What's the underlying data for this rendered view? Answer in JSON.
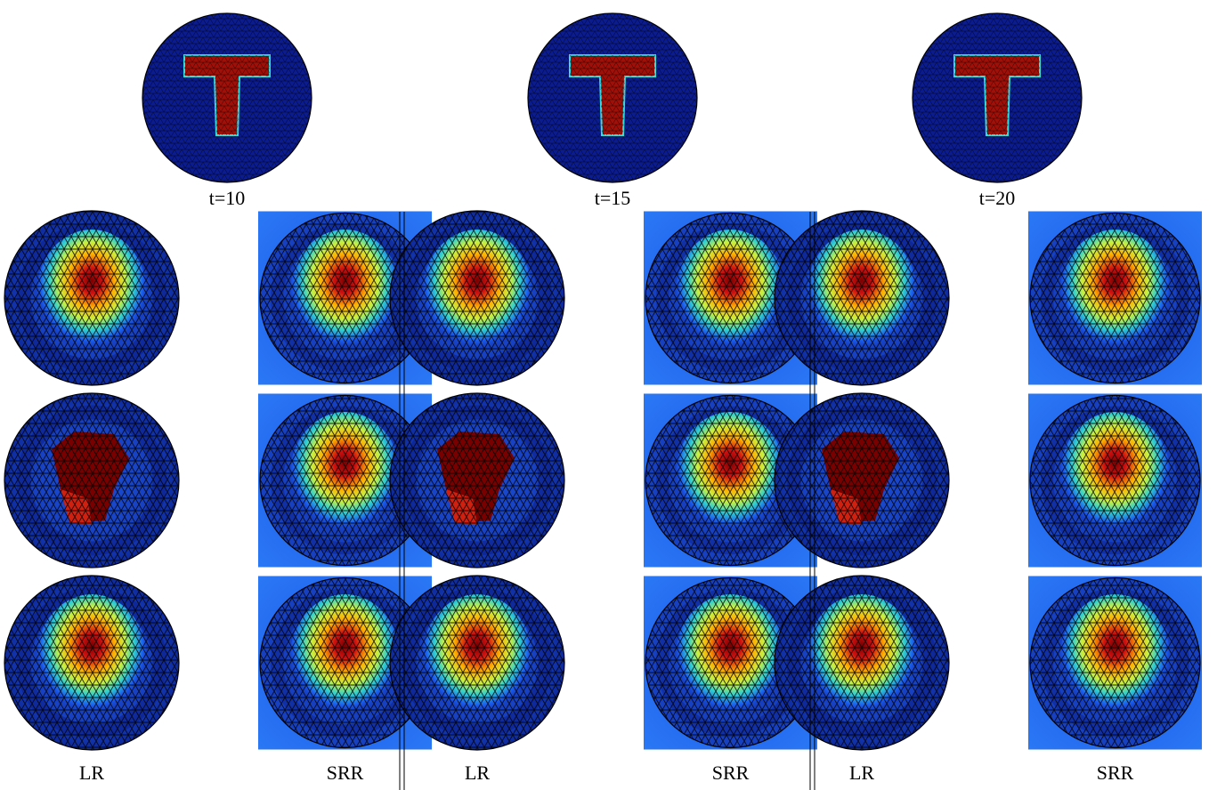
{
  "columns": [
    {
      "time_label": "t=10",
      "left_label": "LR",
      "right_label": "SRR"
    },
    {
      "time_label": "t=15",
      "left_label": "LR",
      "right_label": "SRR"
    },
    {
      "time_label": "t=20",
      "left_label": "LR",
      "right_label": "SRR"
    }
  ],
  "colors": {
    "background_blue": "#0a1a8c",
    "square_blue": "#1b5cf0",
    "mesh_line": "#000000",
    "hot": "#7a0000",
    "divider": "#000000"
  }
}
